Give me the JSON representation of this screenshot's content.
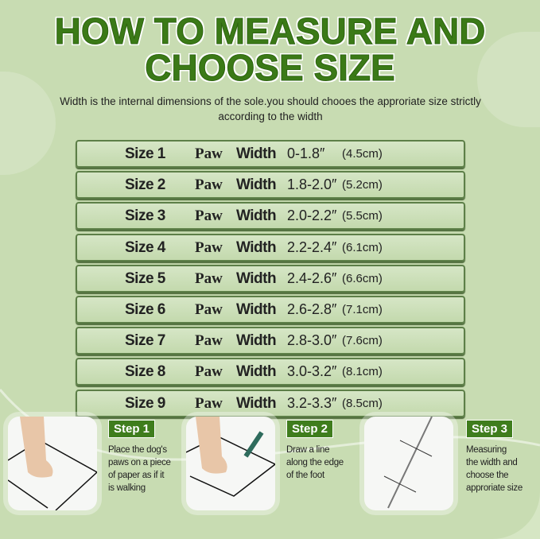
{
  "title_line1": "HOW TO MEASURE AND",
  "title_line2": "CHOOSE SIZE",
  "subtitle": "Width is the internal dimensions of the sole.you should chooes the approriate size strictly according to the width",
  "paw_label": "Paw",
  "width_label": "Width",
  "sizes": [
    {
      "size": "Size 1",
      "inch": "0-1.8″",
      "cm": "(4.5cm)"
    },
    {
      "size": "Size 2",
      "inch": "1.8-2.0″",
      "cm": "(5.2cm)"
    },
    {
      "size": "Size 3",
      "inch": "2.0-2.2″",
      "cm": "(5.5cm)"
    },
    {
      "size": "Size 4",
      "inch": "2.2-2.4″",
      "cm": "(6.1cm)"
    },
    {
      "size": "Size 5",
      "inch": "2.4-2.6″",
      "cm": "(6.6cm)"
    },
    {
      "size": "Size 6",
      "inch": "2.6-2.8″",
      "cm": "(7.1cm)"
    },
    {
      "size": "Size 7",
      "inch": "2.8-3.0″",
      "cm": "(7.6cm)"
    },
    {
      "size": "Size 8",
      "inch": "3.0-3.2″",
      "cm": "(8.1cm)"
    },
    {
      "size": "Size 9",
      "inch": "3.2-3.3″",
      "cm": "(8.5cm)"
    }
  ],
  "steps": [
    {
      "label": "Step 1",
      "text": "Place the dog's\npaws on a piece\nof paper as if it\nis walking",
      "icon": "paw-on-paper"
    },
    {
      "label": "Step 2",
      "text": "Draw a line\nalong the edge\nof the foot",
      "icon": "pencil-tracing"
    },
    {
      "label": "Step 3",
      "text": "Measuring\nthe width and\nchoose the\napproriate size",
      "icon": "ruler-measure"
    }
  ],
  "colors": {
    "background": "#c8dcb2",
    "title": "#3b7a17",
    "badge": "#3f7d1d",
    "row_border": "#5d7f48"
  }
}
